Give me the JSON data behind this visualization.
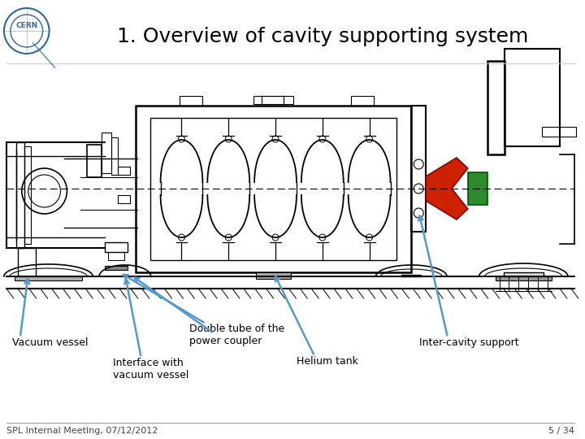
{
  "title": "1. Overview of cavity supporting system",
  "title_fontsize": 18,
  "background_color": "#ffffff",
  "footer_left": "SPL Internal Meeting, 07/12/2012",
  "footer_right": "5 / 34",
  "footer_fontsize": 8,
  "labels": {
    "vacuum_vessel": "Vacuum vessel",
    "double_tube": "Double tube of the\npower coupler",
    "interface": "Interface with\nvacuum vessel",
    "helium_tank": "Helium tank",
    "inter_cavity": "Inter-cavity support"
  },
  "arrow_color": "#5599cc",
  "label_fontsize": 9,
  "cern_logo_color": "#336699"
}
